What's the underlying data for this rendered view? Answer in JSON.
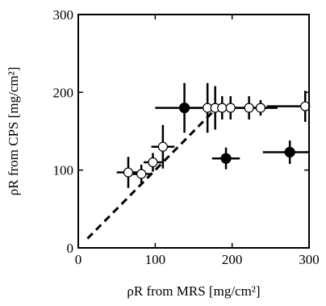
{
  "chart_data": {
    "type": "scatter",
    "xlabel": "ρR from MRS [mg/cm²]",
    "ylabel": "ρR from CPS [mg/cm²]",
    "xlim": [
      0,
      300
    ],
    "ylim": [
      0,
      300
    ],
    "xticks": [
      0,
      100,
      200,
      300
    ],
    "yticks": [
      0,
      100,
      200,
      300
    ],
    "grid": false,
    "series": [
      {
        "marker": "open-circle",
        "points": [
          {
            "x": 65,
            "y": 97,
            "xerr": 15,
            "yerr": 20
          },
          {
            "x": 82,
            "y": 95,
            "xerr": 12,
            "yerr": 12
          },
          {
            "x": 97,
            "y": 110,
            "xerr": 12,
            "yerr": 12
          },
          {
            "x": 110,
            "y": 130,
            "xerr": 15,
            "yerr": 28
          },
          {
            "x": 168,
            "y": 180,
            "xerr": 28,
            "yerr": 32
          },
          {
            "x": 178,
            "y": 180,
            "xerr": 12,
            "yerr": 28
          },
          {
            "x": 187,
            "y": 180,
            "xerr": 12,
            "yerr": 15
          },
          {
            "x": 198,
            "y": 180,
            "xerr": 22,
            "yerr": 15
          },
          {
            "x": 222,
            "y": 180,
            "xerr": 22,
            "yerr": 15
          },
          {
            "x": 237,
            "y": 180,
            "xerr": 22,
            "yerr": 10
          },
          {
            "x": 295,
            "y": 182,
            "xerr": 50,
            "yerr": 20
          }
        ]
      },
      {
        "marker": "filled-circle",
        "points": [
          {
            "x": 138,
            "y": 180,
            "xerr": 38,
            "yerr": 32
          },
          {
            "x": 192,
            "y": 115,
            "xerr": 18,
            "yerr": 14
          },
          {
            "x": 275,
            "y": 123,
            "xerr": 35,
            "yerr": 15
          }
        ]
      }
    ],
    "reference_line": {
      "style": "dashed",
      "x": [
        12,
        180
      ],
      "y": [
        12,
        180
      ]
    }
  }
}
